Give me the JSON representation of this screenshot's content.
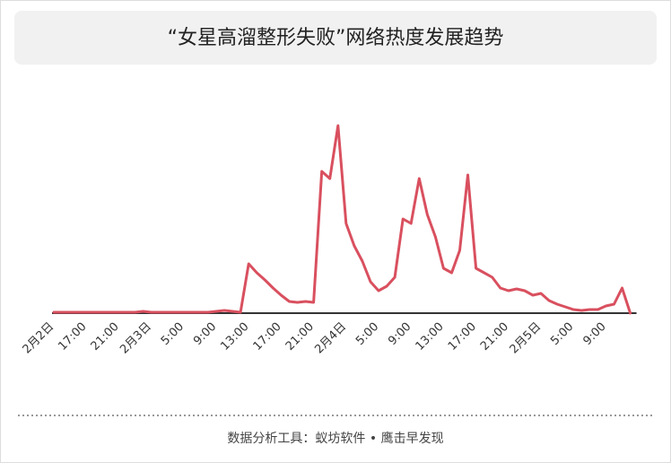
{
  "chart_data": {
    "type": "line",
    "title": "“女星高溜整形失败”网络热度发展趋势",
    "footer": "数据分析工具：蚁坊软件 • 鹰击早发现",
    "categories": [
      "2月2日",
      null,
      null,
      null,
      "17:00",
      null,
      null,
      null,
      "21:00",
      null,
      null,
      null,
      "2月3日",
      null,
      null,
      null,
      "5:00",
      null,
      null,
      null,
      "9:00",
      null,
      null,
      null,
      "13:00",
      null,
      null,
      null,
      "17:00",
      null,
      null,
      null,
      "21:00",
      null,
      null,
      null,
      "2月4日",
      null,
      null,
      null,
      "5:00",
      null,
      null,
      null,
      "9:00",
      null,
      null,
      null,
      "13:00",
      null,
      null,
      null,
      "17:00",
      null,
      null,
      null,
      "21:00",
      null,
      null,
      null,
      "2月5日",
      null,
      null,
      null,
      "5:00",
      null,
      null,
      null,
      "9:00",
      null,
      null,
      null
    ],
    "values": [
      1,
      1,
      1,
      1,
      1,
      1,
      1,
      1,
      1,
      1,
      1,
      2,
      1,
      1,
      1,
      1,
      1,
      1,
      1,
      1,
      2,
      3,
      2,
      1,
      55,
      45,
      37,
      28,
      20,
      13,
      12,
      13,
      12,
      158,
      150,
      209,
      100,
      75,
      58,
      35,
      25,
      30,
      40,
      105,
      100,
      150,
      110,
      85,
      50,
      45,
      70,
      154,
      50,
      45,
      40,
      28,
      25,
      27,
      25,
      20,
      22,
      14,
      10,
      7,
      4,
      3,
      4,
      4,
      8,
      10,
      28,
      0
    ],
    "color": "#d9505f",
    "ylim": [
      0,
      230
    ]
  }
}
